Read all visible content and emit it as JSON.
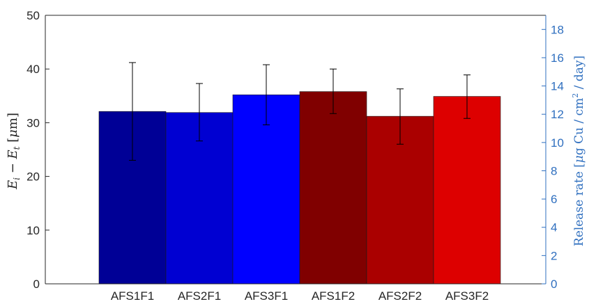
{
  "chart_data": {
    "type": "bar",
    "categories": [
      "AFS1F1",
      "AFS2F1",
      "AFS3F1",
      "AFS1F2",
      "AFS2F2",
      "AFS3F2"
    ],
    "values": [
      32.1,
      31.9,
      35.2,
      35.8,
      31.2,
      34.9
    ],
    "error_low": [
      23.0,
      26.6,
      29.6,
      31.7,
      26.0,
      30.8
    ],
    "error_high": [
      41.2,
      37.3,
      40.8,
      40.0,
      36.3,
      38.9
    ],
    "colors": [
      "#000096",
      "#0000d2",
      "#0000ff",
      "#800000",
      "#aa0000",
      "#dd0000"
    ],
    "ylabel": "E_i − E_t [μm]",
    "ylabel_parts": {
      "E": "E",
      "i": "i",
      "minus": " − ",
      "t": "t",
      "unit_open": " [",
      "mu": "μ",
      "unit_close": "m]"
    },
    "ylim": [
      0,
      50
    ],
    "yticks": [
      0,
      10,
      20,
      30,
      40,
      50
    ],
    "y2label": "Release rate [μg Cu / cm² / day]",
    "y2label_parts": {
      "pre": "Release rate [",
      "mu": "μ",
      "mid": "g Cu / cm",
      "sup": "2",
      "post": " / day]"
    },
    "y2lim": [
      0,
      19
    ],
    "y2ticks": [
      0,
      2,
      4,
      6,
      8,
      10,
      12,
      14,
      16,
      18
    ],
    "right_axis_color": "#2f6fbf",
    "grid": false
  }
}
